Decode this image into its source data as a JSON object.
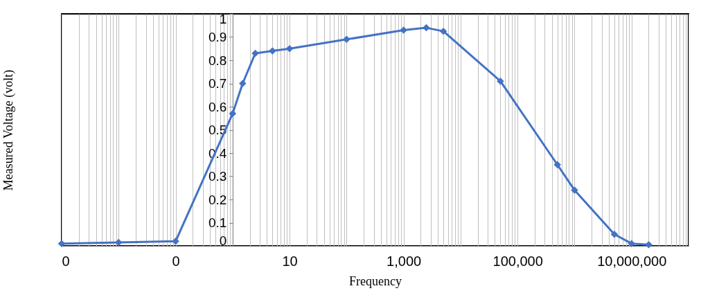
{
  "chart_data": {
    "type": "line",
    "xlabel": "Frequency",
    "ylabel": "Measured Voltage (volt)",
    "x": [
      0.001,
      0.01,
      0.1,
      1,
      1.5,
      2.5,
      5,
      10,
      100,
      1000,
      2500,
      5000,
      50000,
      500000,
      1000000,
      5000000,
      10000000,
      20000000
    ],
    "series": [
      {
        "color": "#4472c4",
        "values": [
          0.01,
          0.015,
          0.02,
          0.57,
          0.7,
          0.83,
          0.84,
          0.85,
          0.89,
          0.93,
          0.94,
          0.925,
          0.71,
          0.35,
          0.24,
          0.05,
          0.01,
          0.005
        ]
      }
    ],
    "log": "x",
    "xlim": [
      0.001,
      100000000
    ],
    "xticks": [
      {
        "value": 0.001,
        "label": "0"
      },
      {
        "value": 0.1,
        "label": "0"
      },
      10,
      {
        "value": 1000,
        "label": "1,000"
      },
      {
        "value": 100000,
        "label": "100,000"
      },
      {
        "value": 10000000,
        "label": "10,000,000"
      }
    ],
    "ylim": [
      0,
      1
    ],
    "yticks": [
      0,
      0.1,
      0.2,
      0.3,
      0.4,
      0.5,
      0.6,
      0.7,
      0.8,
      0.9,
      1
    ],
    "grid": "x",
    "marker": "diamond",
    "line_style": "solid"
  }
}
